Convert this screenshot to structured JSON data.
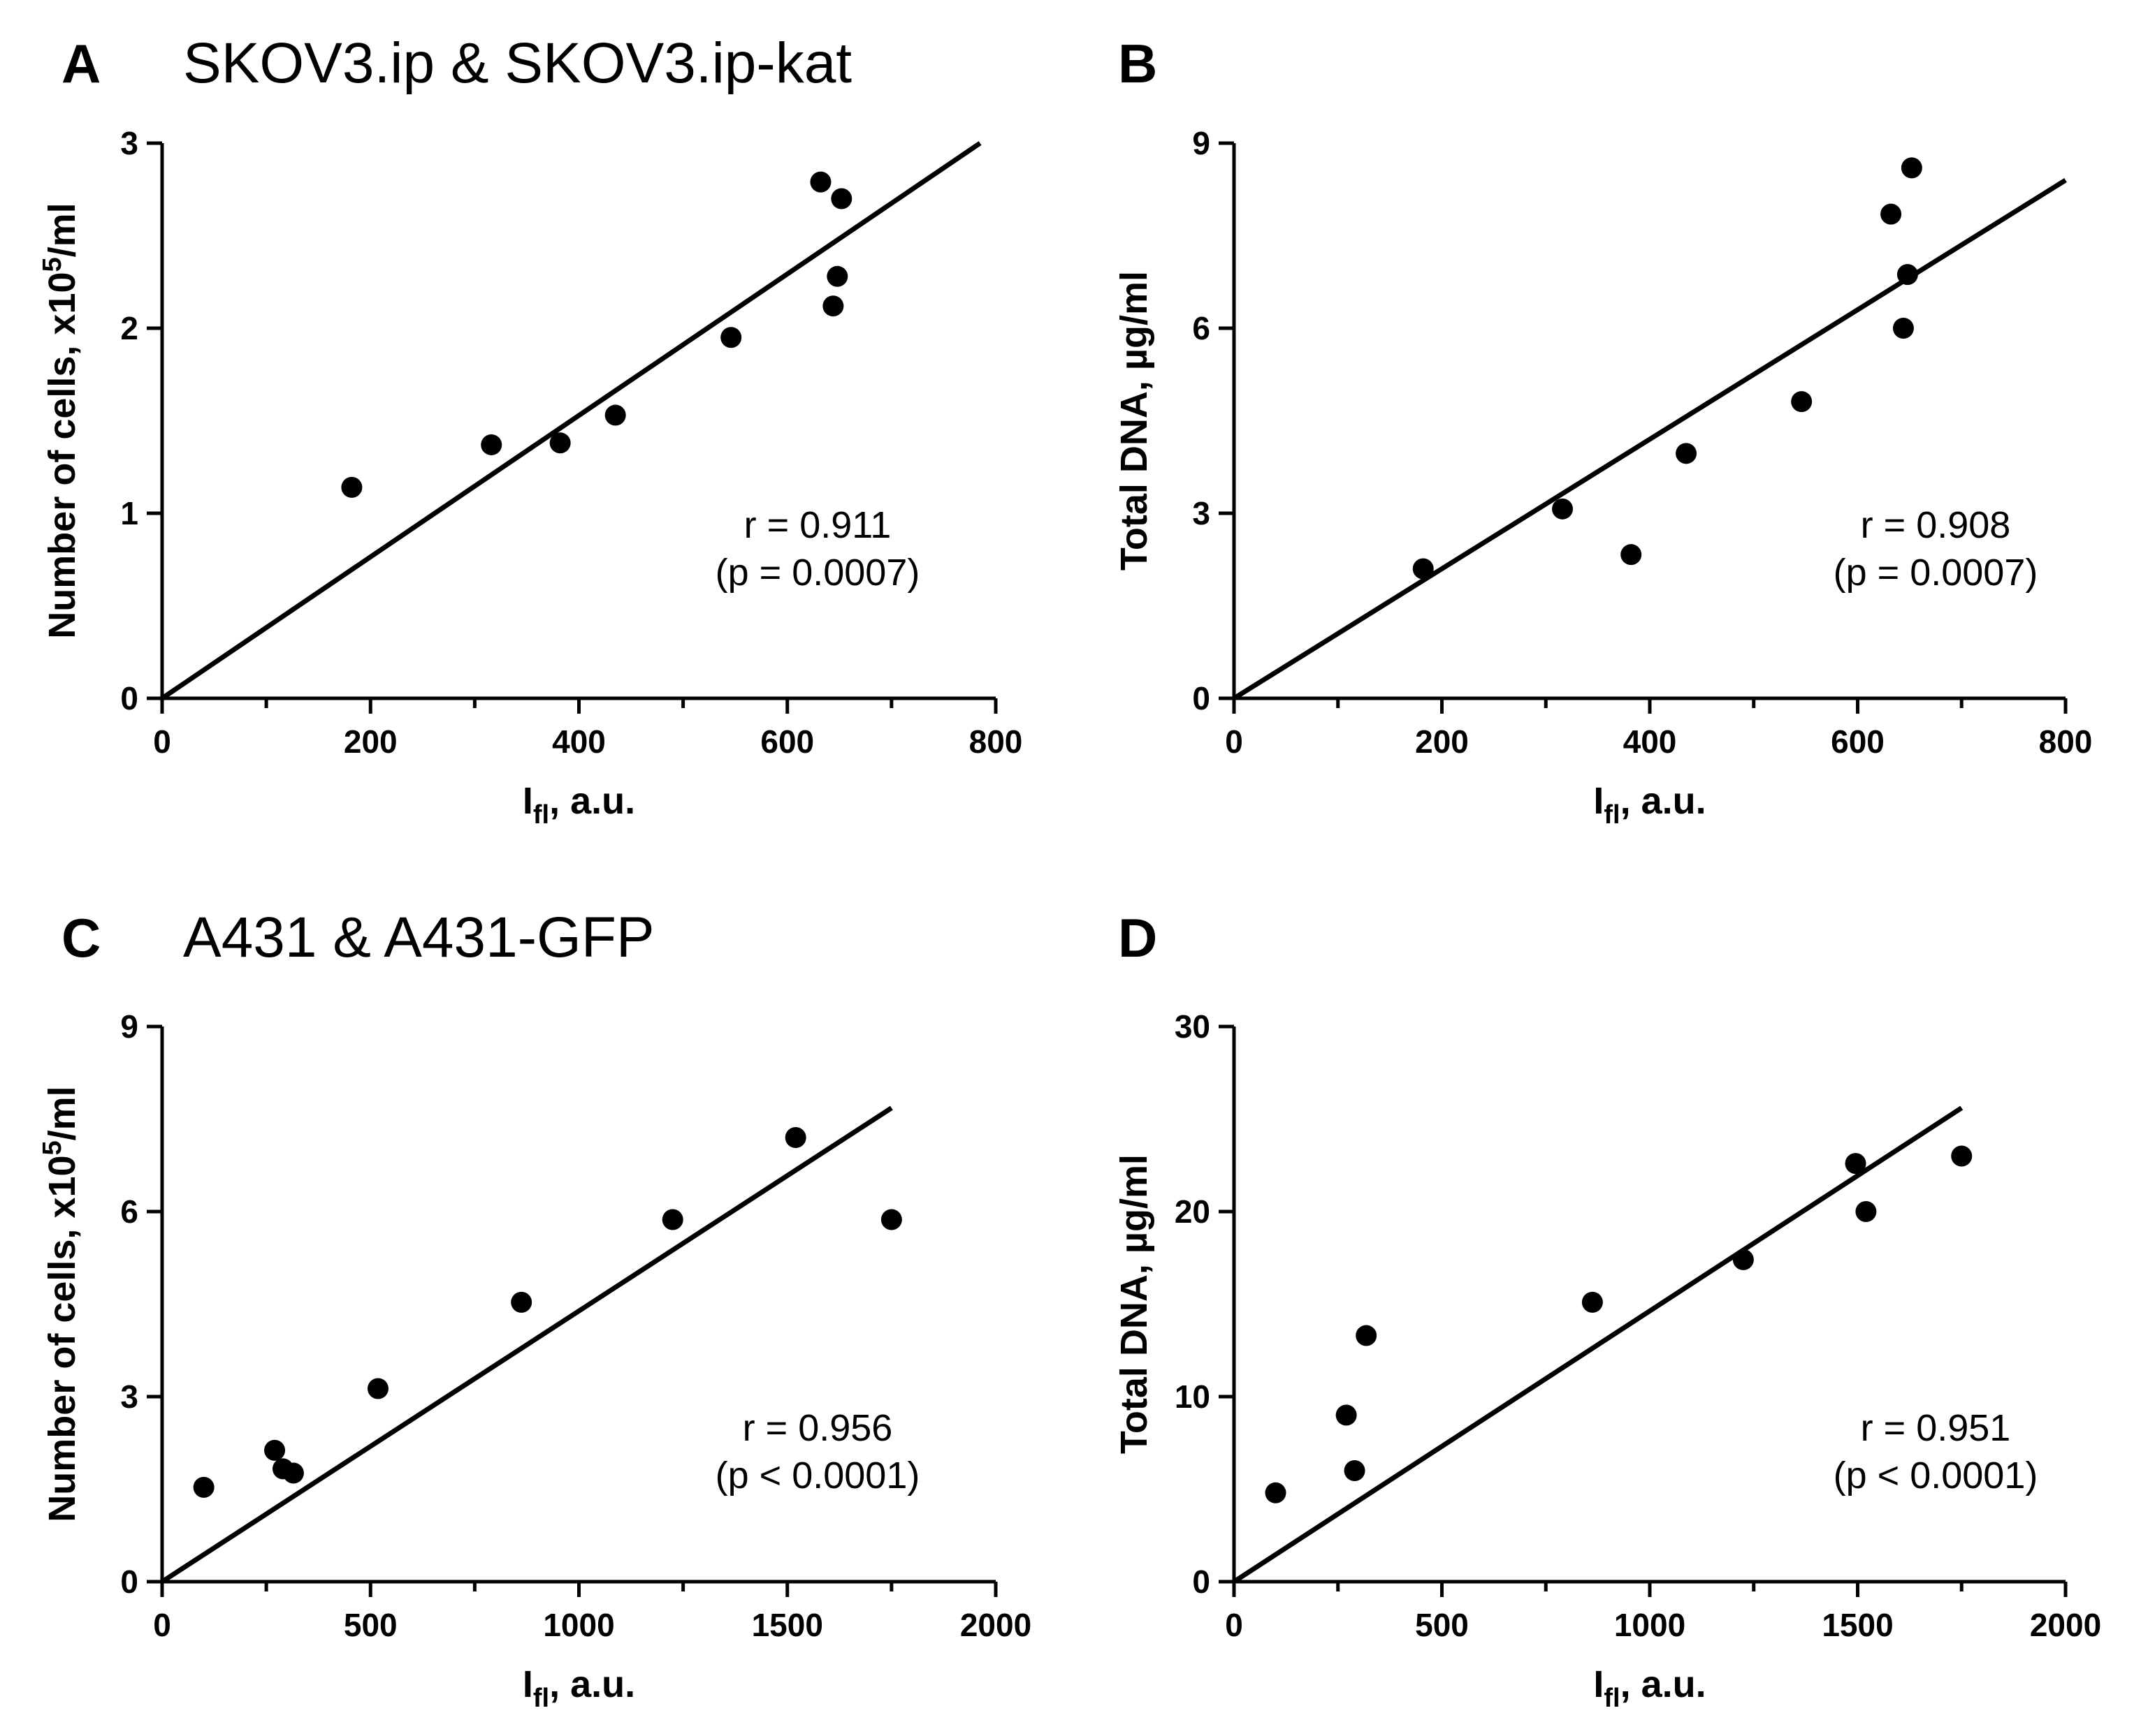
{
  "chart_data": [
    {
      "type": "scatter",
      "panel": "A",
      "title": "SKOV3.ip & SKOV3.ip-kat",
      "xlabel_main": "I",
      "xlabel_sub": "fl",
      "xlabel_rest": ", a.u.",
      "ylabel_main": "Number of cells, x10",
      "ylabel_sup": "5",
      "ylabel_rest": "/ml",
      "xlim": [
        0,
        800
      ],
      "ylim": [
        0,
        3
      ],
      "xticks": [
        0,
        200,
        400,
        600,
        800
      ],
      "yticks": [
        0,
        1,
        2,
        3
      ],
      "points": [
        {
          "x": 182,
          "y": 1.14
        },
        {
          "x": 316,
          "y": 1.37
        },
        {
          "x": 382,
          "y": 1.38
        },
        {
          "x": 435,
          "y": 1.53
        },
        {
          "x": 546,
          "y": 1.95
        },
        {
          "x": 632,
          "y": 2.79
        },
        {
          "x": 652,
          "y": 2.7
        },
        {
          "x": 648,
          "y": 2.28
        },
        {
          "x": 644,
          "y": 2.12
        }
      ],
      "fit": {
        "x": [
          0,
          785
        ],
        "y": [
          0,
          3.0
        ]
      },
      "annotation": [
        "r = 0.911",
        "(p = 0.0007)"
      ]
    },
    {
      "type": "scatter",
      "panel": "B",
      "title": "",
      "xlabel_main": "I",
      "xlabel_sub": "fl",
      "xlabel_rest": ", a.u.",
      "ylabel_main": "Total DNA, µg/ml",
      "ylabel_sup": "",
      "ylabel_rest": "",
      "xlim": [
        0,
        800
      ],
      "ylim": [
        0,
        9
      ],
      "xticks": [
        0,
        200,
        400,
        600,
        800
      ],
      "yticks": [
        0,
        3,
        6,
        9
      ],
      "points": [
        {
          "x": 182,
          "y": 2.1
        },
        {
          "x": 316,
          "y": 3.07
        },
        {
          "x": 382,
          "y": 2.33
        },
        {
          "x": 435,
          "y": 3.97
        },
        {
          "x": 546,
          "y": 4.81
        },
        {
          "x": 632,
          "y": 7.85
        },
        {
          "x": 652,
          "y": 8.6
        },
        {
          "x": 648,
          "y": 6.87
        },
        {
          "x": 644,
          "y": 6.0
        }
      ],
      "fit": {
        "x": [
          0,
          800
        ],
        "y": [
          0,
          8.4
        ]
      },
      "annotation": [
        "r = 0.908",
        "(p = 0.0007)"
      ]
    },
    {
      "type": "scatter",
      "panel": "C",
      "title": "A431 & A431-GFP",
      "xlabel_main": "I",
      "xlabel_sub": "fl",
      "xlabel_rest": ", a.u.",
      "ylabel_main": "Number of cells, x10",
      "ylabel_sup": "5",
      "ylabel_rest": "/ml",
      "xlim": [
        0,
        2000
      ],
      "ylim": [
        0,
        9
      ],
      "xticks": [
        0,
        500,
        1000,
        1500,
        2000
      ],
      "yticks": [
        0,
        3,
        6,
        9
      ],
      "points": [
        {
          "x": 100,
          "y": 1.53
        },
        {
          "x": 270,
          "y": 2.13
        },
        {
          "x": 290,
          "y": 1.83
        },
        {
          "x": 315,
          "y": 1.76
        },
        {
          "x": 518,
          "y": 3.13
        },
        {
          "x": 862,
          "y": 4.53
        },
        {
          "x": 1225,
          "y": 5.87
        },
        {
          "x": 1520,
          "y": 7.2
        },
        {
          "x": 1750,
          "y": 5.87
        }
      ],
      "fit": {
        "x": [
          0,
          1750
        ],
        "y": [
          0,
          7.68
        ]
      },
      "annotation": [
        "r = 0.956",
        "(p < 0.0001)"
      ]
    },
    {
      "type": "scatter",
      "panel": "D",
      "title": "",
      "xlabel_main": "I",
      "xlabel_sub": "fl",
      "xlabel_rest": ", a.u.",
      "ylabel_main": "Total DNA, µg/ml",
      "ylabel_sup": "",
      "ylabel_rest": "",
      "xlim": [
        0,
        2000
      ],
      "ylim": [
        0,
        30
      ],
      "xticks": [
        0,
        500,
        1000,
        1500,
        2000
      ],
      "yticks": [
        0,
        10,
        20,
        30
      ],
      "points": [
        {
          "x": 100,
          "y": 4.8
        },
        {
          "x": 270,
          "y": 9.0
        },
        {
          "x": 290,
          "y": 6.0
        },
        {
          "x": 318,
          "y": 13.3
        },
        {
          "x": 862,
          "y": 15.1
        },
        {
          "x": 1225,
          "y": 17.4
        },
        {
          "x": 1495,
          "y": 22.6
        },
        {
          "x": 1520,
          "y": 20.0
        },
        {
          "x": 1750,
          "y": 23.0
        }
      ],
      "fit": {
        "x": [
          0,
          1750
        ],
        "y": [
          0,
          25.6
        ]
      },
      "annotation": [
        "r = 0.951",
        "(p < 0.0001)"
      ]
    }
  ]
}
